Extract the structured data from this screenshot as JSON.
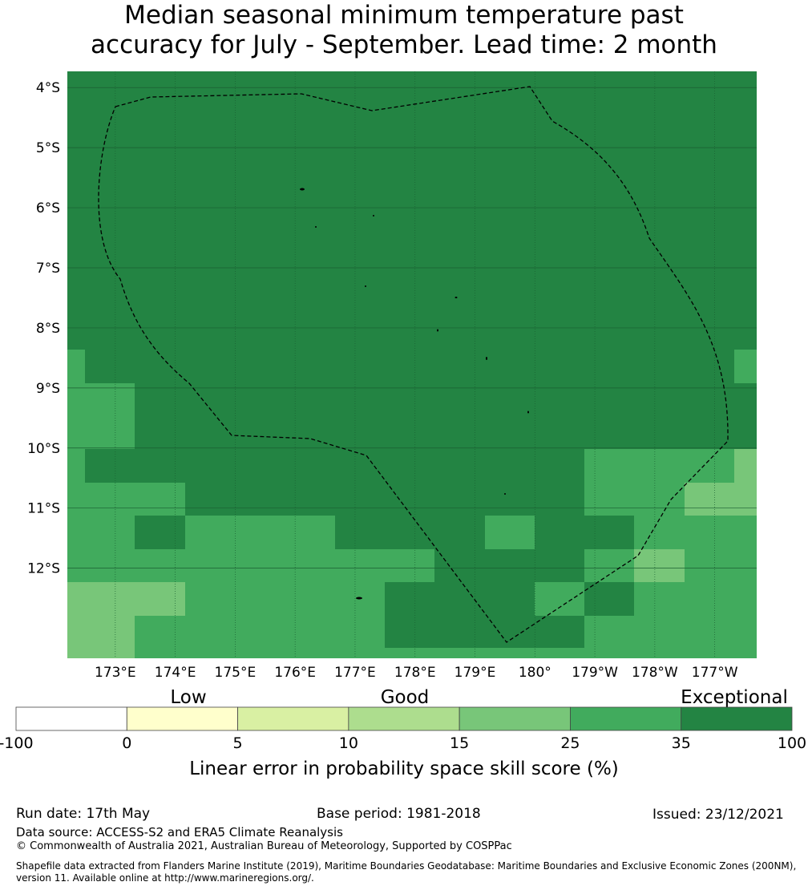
{
  "title_line1": "Median seasonal minimum temperature past",
  "title_line2": "accuracy for July - September. Lead time: 2 month",
  "map": {
    "lon_ticks": [
      "173°E",
      "174°E",
      "175°E",
      "176°E",
      "177°E",
      "178°E",
      "179°E",
      "180°",
      "179°W",
      "178°W",
      "177°W"
    ],
    "lat_ticks": [
      "4°S",
      "5°S",
      "6°S",
      "7°S",
      "8°S",
      "9°S",
      "10°S",
      "11°S",
      "12°S"
    ],
    "extent": {
      "lon_min": 172.2,
      "lon_max": 183.7,
      "lat_top": -3.73,
      "lat_bottom": -13.5
    },
    "category_colors": {
      "c15": "#78c679",
      "c25": "#41ab5d",
      "c35": "#238443",
      "grid": "#1a5e31"
    }
  },
  "colorbar": {
    "categories": [
      "Low",
      "Good",
      "Exceptional"
    ],
    "boundaries": [
      "-100",
      "0",
      "5",
      "10",
      "15",
      "25",
      "35",
      "100"
    ],
    "colors": [
      "#ffffff",
      "#ffffcc",
      "#d9f0a3",
      "#addd8e",
      "#78c679",
      "#41ab5d",
      "#238443"
    ],
    "title": "Linear error in probability space skill score (%)"
  },
  "footer": {
    "run_date": "Run date: 17th May",
    "base_period": "Base period: 1981-2018",
    "issued": "Issued: 23/12/2021",
    "data_source": "Data source: ACCESS-S2 and ERA5 Climate Reanalysis",
    "copyright": "© Commonwealth of Australia 2021, Australian Bureau of Meteorology, Supported by COSPPac",
    "shapefile": "Shapefile data extracted from Flanders Marine Institute (2019), Maritime Boundaries Geodatabase: Maritime Boundaries and Exclusive Economic Zones (200NM), version 11. Available online at http://www.marineregions.org/."
  }
}
